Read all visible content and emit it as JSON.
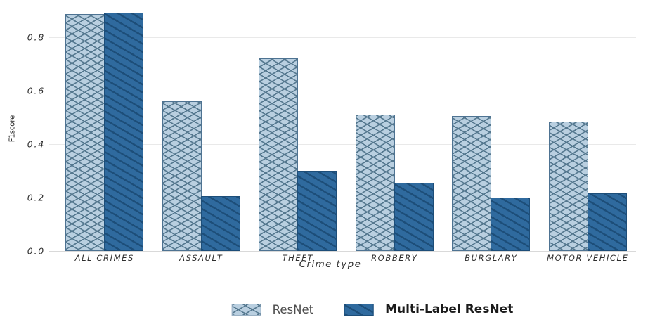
{
  "figure": {
    "background": "#ffffff"
  },
  "chart_data": {
    "type": "bar",
    "title": "",
    "categories": [
      "ALL CRIMES",
      "ASSAULT",
      "THEFT",
      "ROBBERY",
      "BURGLARY",
      "MOTOR VEHICLE"
    ],
    "series": [
      {
        "name": "ResNet",
        "style": "light-crosshatch",
        "values": [
          0.885,
          0.56,
          0.72,
          0.51,
          0.505,
          0.485
        ]
      },
      {
        "name": "Multi-Label ResNet",
        "style": "dark-diagonal",
        "values": [
          0.89,
          0.205,
          0.3,
          0.255,
          0.2,
          0.215
        ]
      }
    ],
    "xlabel": "Crime type",
    "ylabel": "F1score",
    "ylim": [
      0,
      0.92
    ],
    "yticks": [
      "0.0",
      "0.2",
      "0.4",
      "0.6",
      "0.8"
    ],
    "grid": true,
    "legend_position": "bottom-center"
  },
  "legend": {
    "items": [
      {
        "label": "ResNet",
        "swatch": "light-crosshatch-swatch",
        "bold": false
      },
      {
        "label": "Multi-Label ResNet",
        "swatch": "dark-diagonal-swatch",
        "bold": true
      }
    ]
  },
  "colors": {
    "resnet_fill": "#b9cfe0",
    "resnet_hatch": "#55788f",
    "multilabel_fill": "#2f6a9e",
    "multilabel_hatch": "#1d4e79",
    "gridline": "#e9e9e9",
    "axis_text": "#2e2e2e"
  }
}
